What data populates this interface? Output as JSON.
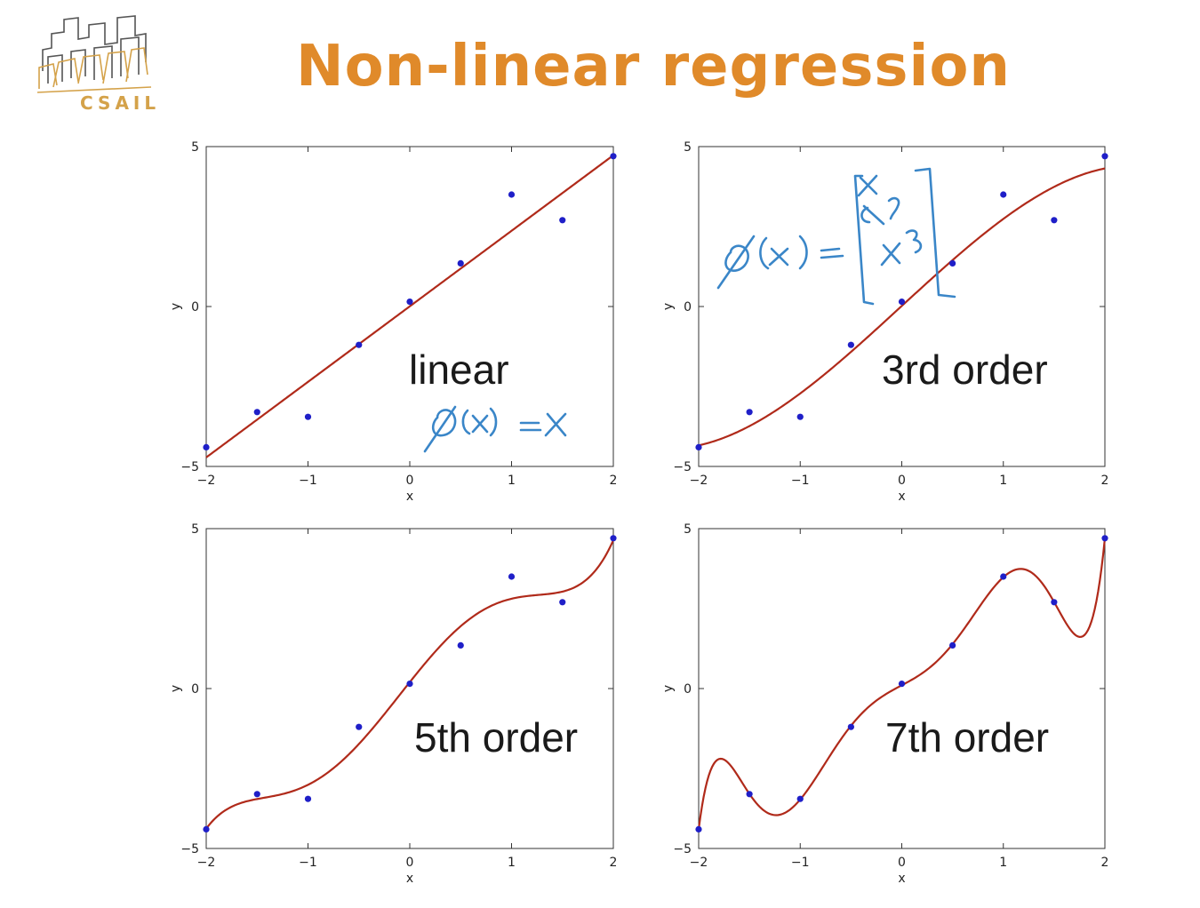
{
  "page": {
    "title": "Non-linear regression",
    "logo_text": "CSAIL"
  },
  "colors": {
    "title": "#e08a2a",
    "logo": "#d4a24a",
    "fit_line": "#b02a1a",
    "points": "#1f1fc8",
    "handwriting": "#3a86c8"
  },
  "chart_data": [
    {
      "type": "scatter",
      "label": "linear",
      "annotation": "ϕ(x) = x",
      "xlabel": "x",
      "ylabel": "y",
      "xlim": [
        -2,
        2
      ],
      "ylim": [
        -5,
        5
      ],
      "xticks": [
        "−2",
        "−1",
        "0",
        "1",
        "2"
      ],
      "yticks": [
        "−5",
        "0",
        "5"
      ],
      "points": {
        "x": [
          -2,
          -1.5,
          -1,
          -0.5,
          0,
          0.5,
          1,
          1.5,
          2
        ],
        "y": [
          -4.4,
          -3.3,
          -3.45,
          -1.2,
          0.15,
          1.35,
          3.5,
          2.7,
          4.7
        ]
      },
      "fit_degree": 1
    },
    {
      "type": "scatter",
      "label": "3rd order",
      "annotation": "ϕ(x) = [x, x², x³]",
      "xlabel": "x",
      "ylabel": "y",
      "xlim": [
        -2,
        2
      ],
      "ylim": [
        -5,
        5
      ],
      "xticks": [
        "−2",
        "−1",
        "0",
        "1",
        "2"
      ],
      "yticks": [
        "−5",
        "0",
        "5"
      ],
      "points": {
        "x": [
          -2,
          -1.5,
          -1,
          -0.5,
          0,
          0.5,
          1,
          1.5,
          2
        ],
        "y": [
          -4.4,
          -3.3,
          -3.45,
          -1.2,
          0.15,
          1.35,
          3.5,
          2.7,
          4.7
        ]
      },
      "fit_degree": 3
    },
    {
      "type": "scatter",
      "label": "5th order",
      "xlabel": "x",
      "ylabel": "y",
      "xlim": [
        -2,
        2
      ],
      "ylim": [
        -5,
        5
      ],
      "xticks": [
        "−2",
        "−1",
        "0",
        "1",
        "2"
      ],
      "yticks": [
        "−5",
        "0",
        "5"
      ],
      "points": {
        "x": [
          -2,
          -1.5,
          -1,
          -0.5,
          0,
          0.5,
          1,
          1.5,
          2
        ],
        "y": [
          -4.4,
          -3.3,
          -3.45,
          -1.2,
          0.15,
          1.35,
          3.5,
          2.7,
          4.7
        ]
      },
      "fit_degree": 5
    },
    {
      "type": "scatter",
      "label": "7th order",
      "xlabel": "x",
      "ylabel": "y",
      "xlim": [
        -2,
        2
      ],
      "ylim": [
        -5,
        5
      ],
      "xticks": [
        "−2",
        "−1",
        "0",
        "1",
        "2"
      ],
      "yticks": [
        "−5",
        "0",
        "5"
      ],
      "points": {
        "x": [
          -2,
          -1.5,
          -1,
          -0.5,
          0,
          0.5,
          1,
          1.5,
          2
        ],
        "y": [
          -4.4,
          -3.3,
          -3.45,
          -1.2,
          0.15,
          1.35,
          3.5,
          2.7,
          4.7
        ]
      },
      "fit_degree": 7
    }
  ]
}
